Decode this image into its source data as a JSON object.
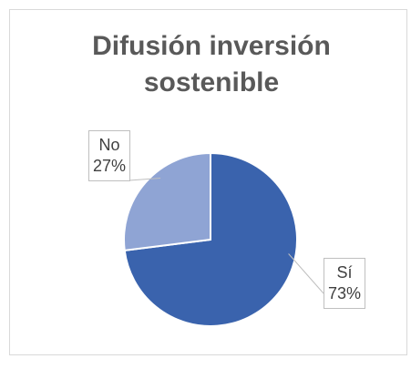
{
  "chart_data": {
    "type": "pie",
    "title": "Difusión inversión sostenible",
    "categories": [
      "Sí",
      "No"
    ],
    "values": [
      73,
      27
    ],
    "value_labels": [
      "73%",
      "27%"
    ],
    "colors": [
      "#3a63ad",
      "#8fa4d4"
    ]
  }
}
